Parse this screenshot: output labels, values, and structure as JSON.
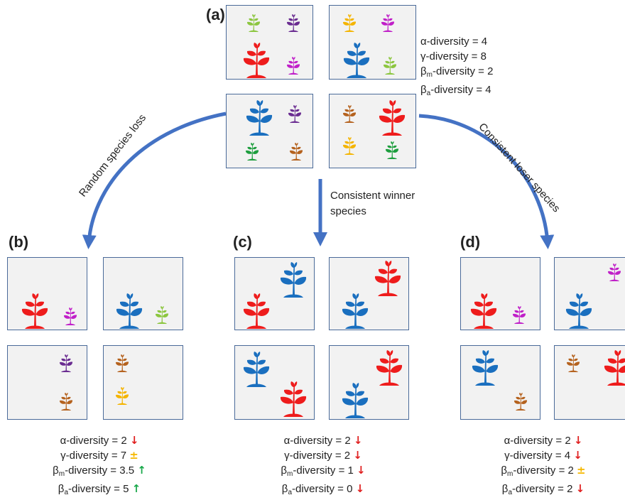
{
  "panels": {
    "a": {
      "label": "(a)"
    },
    "b": {
      "label": "(b)"
    },
    "c": {
      "label": "(c)"
    },
    "d": {
      "label": "(d)"
    }
  },
  "paths": {
    "random": "Random species loss",
    "winner_line1": "Consistent winner",
    "winner_line2": "species",
    "loser": "Consistent loser species"
  },
  "stats_a": {
    "alpha": "α-diversity = 4",
    "gamma": "γ-diversity = 8",
    "beta_m_pre": "β",
    "beta_m_sub": "m",
    "beta_m_post": "-diversity = 2",
    "beta_a_pre": "β",
    "beta_a_sub": "a",
    "beta_a_post": "-diversity = 4"
  },
  "stats_b": {
    "alpha": "α-diversity = 2",
    "alpha_arrow": "↓",
    "gamma": "γ-diversity = 7",
    "gamma_arrow": "±",
    "beta_m_pre": "β",
    "beta_m_sub": "m",
    "beta_m_post": "-diversity = 3.5",
    "beta_m_arrow": "↑",
    "beta_a_pre": "β",
    "beta_a_sub": "a",
    "beta_a_post": "-diversity = 5",
    "beta_a_arrow": "↑"
  },
  "stats_c": {
    "alpha": "α-diversity = 2",
    "alpha_arrow": "↓",
    "gamma": "γ-diversity = 2",
    "gamma_arrow": "↓",
    "beta_m_pre": "β",
    "beta_m_sub": "m",
    "beta_m_post": "-diversity = 1",
    "beta_m_arrow": "↓",
    "beta_a_pre": "β",
    "beta_a_sub": "a",
    "beta_a_post": "-diversity = 0",
    "beta_a_arrow": "↓"
  },
  "stats_d": {
    "alpha": "α-diversity = 2",
    "alpha_arrow": "↓",
    "gamma": "γ-diversity = 4",
    "gamma_arrow": "↓",
    "beta_m_pre": "β",
    "beta_m_sub": "m",
    "beta_m_post": "-diversity = 2",
    "beta_m_arrow": "±",
    "beta_a_pre": "β",
    "beta_a_sub": "a",
    "beta_a_post": "-diversity = 2",
    "beta_a_arrow": "↓"
  },
  "colors": {
    "red": "#ee1c1c",
    "blue": "#1a6fbf",
    "purple": "#6a2c91",
    "magenta": "#c020c8",
    "lime": "#8cc63f",
    "green": "#1e9e3e",
    "orange": "#b5621e",
    "yellow": "#f4b400",
    "arrow": "#4472c4"
  }
}
